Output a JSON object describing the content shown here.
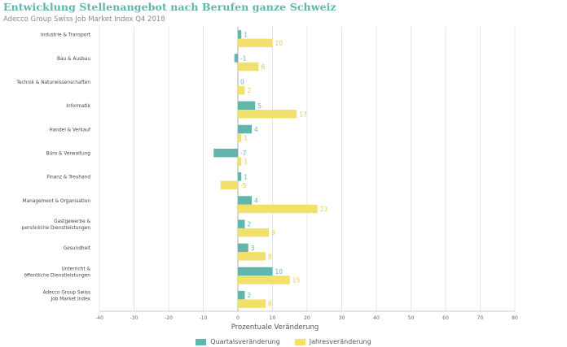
{
  "chart_data": {
    "type": "bar",
    "orientation": "horizontal",
    "title": "Entwicklung Stellenangebot nach Berufen ganze Schweiz",
    "subtitle": "Adecco Group Swiss Job Market Index Q4 2018",
    "xlabel": "Prozentuale Veränderung",
    "xlim": [
      -40,
      80
    ],
    "xticks": [
      -40,
      -30,
      -20,
      -10,
      0,
      10,
      20,
      30,
      40,
      50,
      60,
      70,
      80
    ],
    "grid": true,
    "legend_position": "bottom",
    "categories": [
      [
        "Industrie & Transport"
      ],
      [
        "Bau & Ausbau"
      ],
      [
        "Technik & Naturwissenschaften"
      ],
      [
        "Informatik"
      ],
      [
        "Handel & Verkauf"
      ],
      [
        "Büro & Verwaltung"
      ],
      [
        "Finanz & Treuhand"
      ],
      [
        "Management & Organisation"
      ],
      [
        "Gastgewerbe &",
        "persönliche Dienstleistungen"
      ],
      [
        "Gesundheit"
      ],
      [
        "Unterricht &",
        "öffentliche Dienstleistungen"
      ],
      [
        "Adecco Group Swiss",
        "Job Market Index"
      ]
    ],
    "series": [
      {
        "name": "Quartalsveränderung",
        "color": "#61b5ad",
        "values": [
          1,
          -1,
          0,
          5,
          4,
          -7,
          1,
          4,
          2,
          3,
          10,
          2
        ]
      },
      {
        "name": "Jahresveränderung",
        "color": "#f2e06d",
        "values": [
          10,
          6,
          2,
          17,
          1,
          1,
          -5,
          23,
          9,
          8,
          15,
          8
        ]
      }
    ]
  }
}
